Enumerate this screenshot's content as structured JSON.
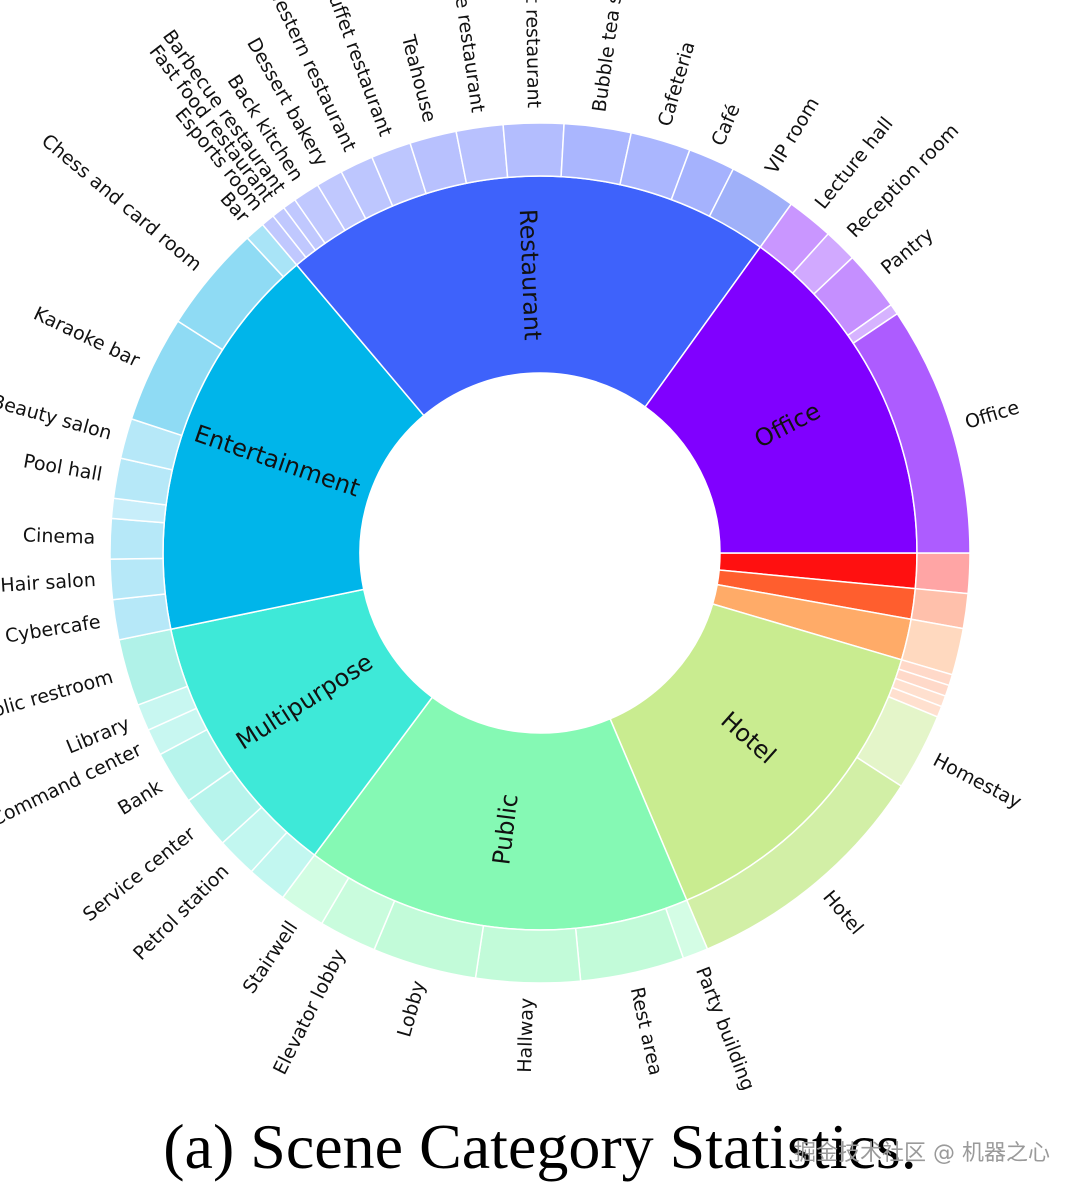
{
  "caption": "(a) Scene Category Statistics.",
  "watermark": "掘金技术社区 @ 机器之心",
  "chart_data": {
    "type": "sunburst",
    "start_angle_deg": 0,
    "direction": "clockwise",
    "categories": [
      {
        "name": "Hotel",
        "value": 28,
        "color": "#c9ec90",
        "children": [
          {
            "name": "",
            "value": 1.0,
            "color": "#ffd9c9"
          },
          {
            "name": "",
            "value": 1.0,
            "color": "#ffd9c9"
          },
          {
            "name": "",
            "value": 1.0,
            "color": "#ffe0cf"
          },
          {
            "name": "",
            "value": 1.0,
            "color": "#ffe0cf"
          },
          {
            "name": "Homestay",
            "value": 7,
            "color": "#e4f5c9"
          },
          {
            "name": "Hotel",
            "value": 23,
            "color": "#d2efa6"
          }
        ],
        "extra_small_groups": [
          {
            "value": 3.0,
            "color": "#ff1010",
            "child": {
              "value": 3.0,
              "color": "#ffa5a5"
            }
          },
          {
            "value": 2.6,
            "color": "#ff5e2e",
            "child": {
              "value": 2.6,
              "color": "#ffc0ab"
            }
          },
          {
            "value": 3.5,
            "color": "#ffab68",
            "child": {
              "value": 3.5,
              "color": "#ffd9bf"
            }
          }
        ]
      },
      {
        "name": "Public",
        "value": 33,
        "color": "#85f9b4",
        "children": [
          {
            "name": "Party building room",
            "value": 2.2,
            "color": "#d4fde5"
          },
          {
            "name": "Rest area",
            "value": 9,
            "color": "#c2fbd9"
          },
          {
            "name": "Hallway",
            "value": 9,
            "color": "#c2fbd9"
          },
          {
            "name": "Lobby",
            "value": 9,
            "color": "#c2fbd9"
          },
          {
            "name": "Elevator lobby",
            "value": 5,
            "color": "#c9fcdd"
          },
          {
            "name": "Stairwell",
            "value": 4,
            "color": "#d2fde3"
          }
        ]
      },
      {
        "name": "Multipurpose",
        "value": 23,
        "color": "#3ee9d8",
        "children": [
          {
            "name": "",
            "value": 3.0,
            "color": "#c2f7f0"
          },
          {
            "name": "Petrol station",
            "value": 3.0,
            "color": "#c2f7f0"
          },
          {
            "name": "Service center",
            "value": 4,
            "color": "#b7f4ec"
          },
          {
            "name": "Bank",
            "value": 4,
            "color": "#b7f4ec"
          },
          {
            "name": "Command center",
            "value": 2,
            "color": "#c8f7f1"
          },
          {
            "name": "Library",
            "value": 2,
            "color": "#c8f7f1"
          },
          {
            "name": "Public restroom",
            "value": 5,
            "color": "#b0f2e8"
          }
        ]
      },
      {
        "name": "Entertainment",
        "value": 34,
        "color": "#00b5ea",
        "children": [
          {
            "name": "Cybercafe",
            "value": 3,
            "color": "#b6e8f8"
          },
          {
            "name": "Hair salon",
            "value": 3,
            "color": "#b6e8f8"
          },
          {
            "name": "Cinema",
            "value": 3,
            "color": "#b6e8f8"
          },
          {
            "name": "",
            "value": 1.5,
            "color": "#c8eefa"
          },
          {
            "name": "Pool hall",
            "value": 3,
            "color": "#b6e8f8"
          },
          {
            "name": "Beauty salon",
            "value": 3,
            "color": "#b6e8f8"
          },
          {
            "name": "Karaoke bar",
            "value": 8,
            "color": "#8fdbf4"
          },
          {
            "name": "Chess and card room",
            "value": 8,
            "color": "#8fdbf4"
          },
          {
            "name": "Bar",
            "value": 1.5,
            "color": "#a9e4f7"
          }
        ]
      },
      {
        "name": "Restaurant",
        "value": 42,
        "color": "#3e62fb",
        "children": [
          {
            "name": "Esports room",
            "value": 1,
            "color": "#c0c8fe"
          },
          {
            "name": "Fast food restaurant",
            "value": 1,
            "color": "#c0c8fe"
          },
          {
            "name": "Barbecue restaurant",
            "value": 1,
            "color": "#c0c8fe"
          },
          {
            "name": "Back kitchen",
            "value": 2,
            "color": "#c0c8fe"
          },
          {
            "name": "Dessert bakery",
            "value": 2,
            "color": "#c0c8fe"
          },
          {
            "name": "Western restaurant",
            "value": 2.5,
            "color": "#bdc6fe"
          },
          {
            "name": "Buffet restaurant",
            "value": 3,
            "color": "#bdc6fe"
          },
          {
            "name": "Teahouse",
            "value": 3.5,
            "color": "#b8c1fe"
          },
          {
            "name": "Chinese restaurant",
            "value": 3.5,
            "color": "#b8c1fe"
          },
          {
            "name": "Hot pot restaurant",
            "value": 4.5,
            "color": "#b3bdfe"
          },
          {
            "name": "Bubble tea shop",
            "value": 5,
            "color": "#aab6fe"
          },
          {
            "name": "Cafeteria",
            "value": 4.5,
            "color": "#aab6fe"
          },
          {
            "name": "Café",
            "value": 3.5,
            "color": "#a5b2fd"
          },
          {
            "name": "VIP room",
            "value": 5,
            "color": "#9fb0f9"
          }
        ]
      },
      {
        "name": "Office",
        "value": 30,
        "color": "#8000ff",
        "children": [
          {
            "name": "Lecture hall",
            "value": 3.5,
            "color": "#c996ff"
          },
          {
            "name": "Reception room",
            "value": 2.5,
            "color": "#d1a9ff"
          },
          {
            "name": "Pantry",
            "value": 4.5,
            "color": "#c58fff"
          },
          {
            "name": "",
            "value": 0.8,
            "color": "#d6b3ff"
          },
          {
            "name": "Office",
            "value": 18.7,
            "color": "#ad5cff"
          }
        ]
      }
    ]
  }
}
